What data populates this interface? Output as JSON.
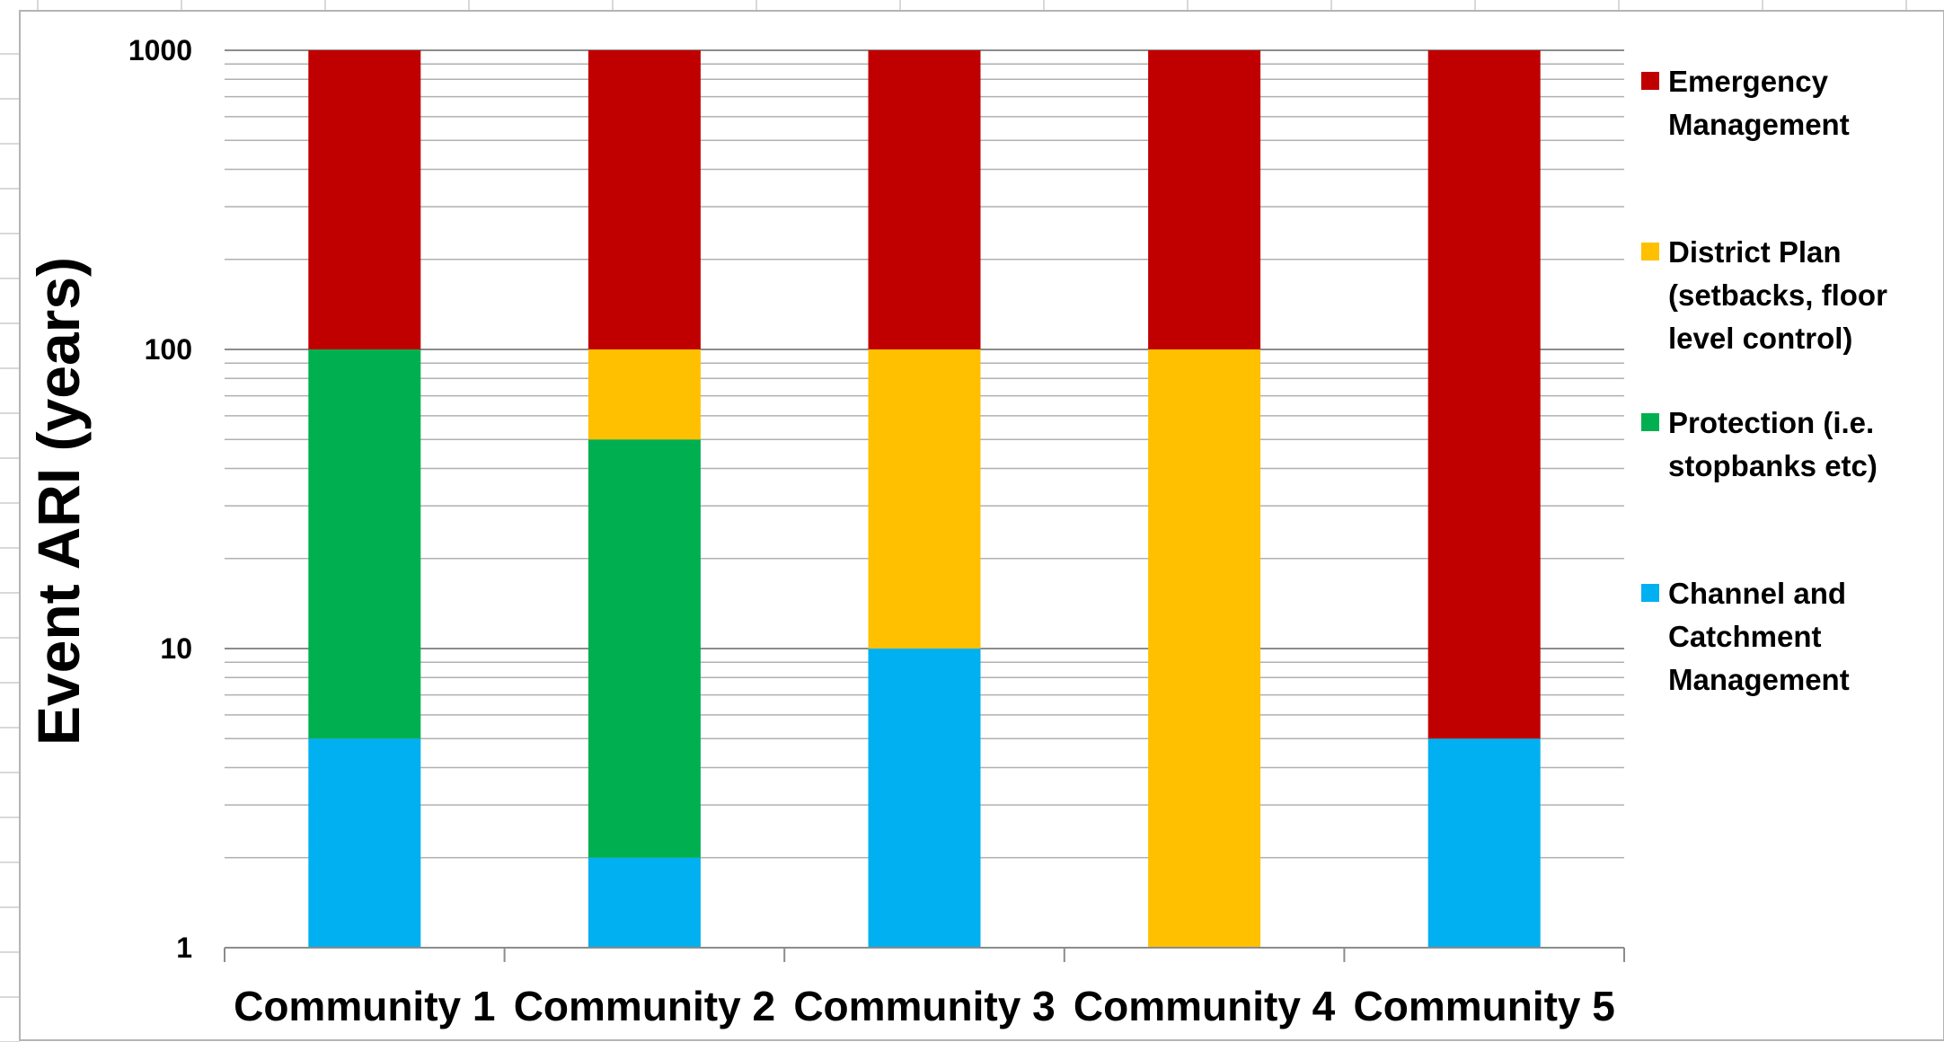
{
  "chart_data": {
    "type": "bar",
    "stacked": true,
    "y_scale": "log",
    "ylim": [
      1,
      1000
    ],
    "y_ticks": [
      "1",
      "10",
      "100",
      "1000"
    ],
    "ylabel": "Event ARI (years)",
    "xlabel": "",
    "title": "",
    "grid": true,
    "legend_position": "right",
    "categories": [
      "Community 1",
      "Community 2",
      "Community 3",
      "Community 4",
      "Community 5"
    ],
    "series": [
      {
        "name": "Channel and Catchment Management",
        "color": "#00B0F0",
        "ranges": [
          [
            1,
            5
          ],
          [
            1,
            2
          ],
          [
            1,
            10
          ],
          null,
          [
            1,
            5
          ]
        ]
      },
      {
        "name": "Protection (i.e. stopbanks etc)",
        "color": "#00B050",
        "ranges": [
          [
            5,
            100
          ],
          [
            2,
            50
          ],
          null,
          null,
          null
        ]
      },
      {
        "name": "District Plan (setbacks, floor level control)",
        "color": "#FFC000",
        "ranges": [
          null,
          [
            50,
            100
          ],
          [
            10,
            100
          ],
          [
            1,
            100
          ],
          null
        ]
      },
      {
        "name": "Emergency Management",
        "color": "#C00000",
        "ranges": [
          [
            100,
            1000
          ],
          [
            100,
            1000
          ],
          [
            100,
            1000
          ],
          [
            100,
            1000
          ],
          [
            5,
            1000
          ]
        ]
      }
    ],
    "legend": [
      {
        "name": "Emergency Management",
        "lines": [
          "Emergency",
          "Management"
        ],
        "color": "#C00000"
      },
      {
        "name": "District Plan (setbacks, floor level control)",
        "lines": [
          "District Plan",
          "(setbacks, floor",
          "level control)"
        ],
        "color": "#FFC000"
      },
      {
        "name": "Protection (i.e. stopbanks etc)",
        "lines": [
          "Protection (i.e.",
          "stopbanks etc)"
        ],
        "color": "#00B050"
      },
      {
        "name": "Channel and Catchment Management",
        "lines": [
          "Channel and",
          "Catchment",
          "Management"
        ],
        "color": "#00B0F0"
      }
    ]
  }
}
